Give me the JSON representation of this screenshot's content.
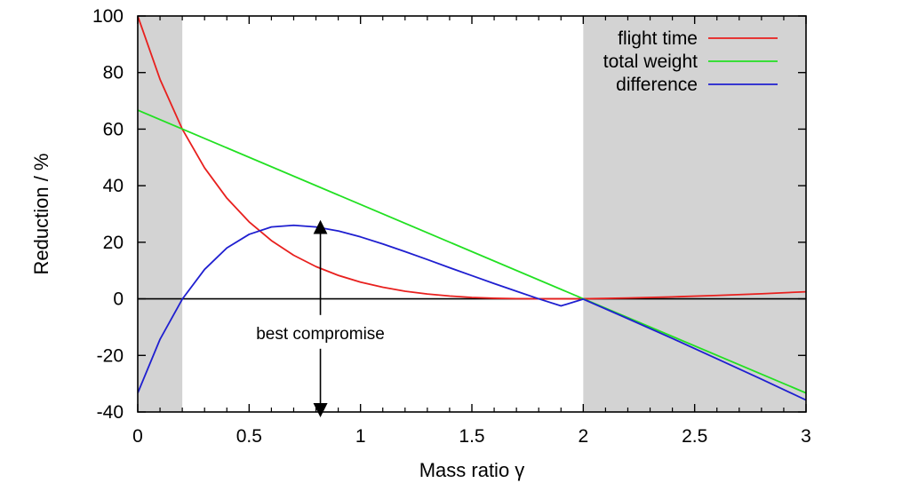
{
  "chart_data": {
    "type": "line",
    "xlabel": "Mass ratio γ",
    "ylabel": "Reduction / %",
    "xlim": [
      0,
      3
    ],
    "ylim": [
      -40,
      100
    ],
    "xticks": [
      0,
      0.5,
      1,
      1.5,
      2,
      2.5,
      3
    ],
    "xtick_labels": [
      "0",
      "0.5",
      "1",
      "1.5",
      "2",
      "2.5",
      "3"
    ],
    "yticks": [
      -40,
      -20,
      0,
      20,
      40,
      60,
      80,
      100
    ],
    "ytick_labels": [
      "-40",
      "-20",
      "0",
      "20",
      "40",
      "60",
      "80",
      "100"
    ],
    "legend_position": "top-right",
    "shaded_regions": [
      [
        0,
        0.2
      ],
      [
        2,
        3
      ]
    ],
    "shade_color": "#d3d3d3",
    "zero_line": true,
    "series": [
      {
        "name": "flight time",
        "color": "#e8201e",
        "x": [
          0,
          0.1,
          0.2,
          0.3,
          0.4,
          0.5,
          0.6,
          0.7,
          0.8,
          0.9,
          1.0,
          1.1,
          1.2,
          1.3,
          1.4,
          1.5,
          1.6,
          1.7,
          1.8,
          1.9,
          2.0,
          2.2,
          2.4,
          2.6,
          2.8,
          3.0
        ],
        "y": [
          100,
          77.6,
          60.0,
          46.3,
          35.6,
          27.2,
          20.6,
          15.4,
          11.4,
          8.3,
          5.9,
          4.1,
          2.7,
          1.7,
          1.0,
          0.5,
          0.2,
          0.05,
          0.0,
          0.0,
          0.0,
          0.3,
          0.7,
          1.2,
          1.8,
          2.5
        ]
      },
      {
        "name": "total weight",
        "color": "#22e022",
        "x": [
          0,
          3
        ],
        "y": [
          66.7,
          -33.3
        ]
      },
      {
        "name": "difference",
        "color": "#1f1fd0",
        "x": [
          0,
          0.1,
          0.2,
          0.3,
          0.4,
          0.5,
          0.6,
          0.7,
          0.8,
          0.9,
          1.0,
          1.1,
          1.2,
          1.3,
          1.4,
          1.5,
          1.6,
          1.7,
          1.8,
          1.9,
          2.0,
          2.2,
          2.4,
          2.6,
          2.8,
          3.0
        ],
        "y": [
          -33.3,
          -14.3,
          -0.1,
          10.4,
          18.0,
          22.8,
          25.4,
          26.0,
          25.4,
          24.0,
          21.9,
          19.4,
          16.7,
          13.9,
          11.0,
          8.2,
          5.4,
          2.7,
          0.0,
          -2.5,
          -0.1,
          -7.0,
          -14.0,
          -21.2,
          -28.4,
          -35.8
        ]
      }
    ],
    "annotations": [
      {
        "text": "best compromise",
        "x": 0.82,
        "y": -12,
        "arrow_from": -40,
        "arrow_to": 26
      }
    ]
  }
}
